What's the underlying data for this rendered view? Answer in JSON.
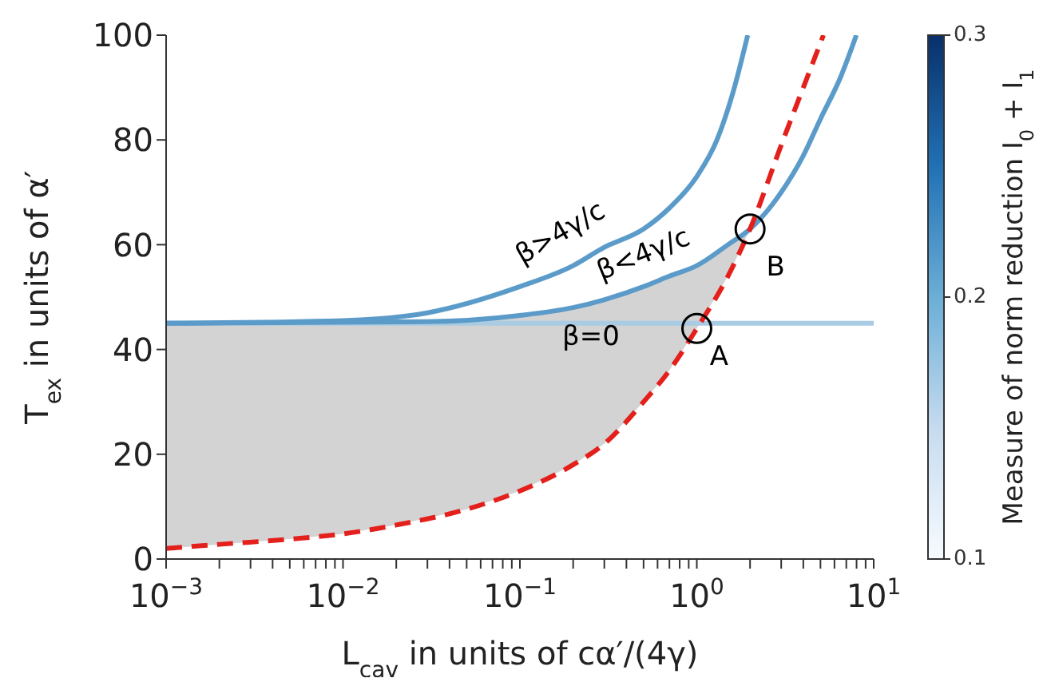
{
  "chart_data": {
    "type": "line",
    "xlabel": "L$_{cav}$ in units of cα′/(4γ)",
    "ylabel": "T$_{ex}$ in units of α′",
    "clabel": "Measure of norm reduction I$_{0}$ + I$_{1}$",
    "clim": [
      0.1,
      0.3
    ],
    "cticks": [
      0.1,
      0.2,
      0.3
    ],
    "log": "x",
    "grid": false,
    "legend": false,
    "xlim": [
      0.001,
      10
    ],
    "ylim": [
      0,
      100
    ],
    "yticks": [
      0,
      20,
      40,
      60,
      80,
      100
    ],
    "xticks": [
      {
        "value": 0.001,
        "label": "10$^{−3}$"
      },
      {
        "value": 0.002,
        "label": null
      },
      {
        "value": 0.003,
        "label": null
      },
      {
        "value": 0.004,
        "label": null
      },
      {
        "value": 0.005,
        "label": null
      },
      {
        "value": 0.006,
        "label": null
      },
      {
        "value": 0.007,
        "label": null
      },
      {
        "value": 0.008,
        "label": null
      },
      {
        "value": 0.009,
        "label": null
      },
      {
        "value": 0.01,
        "label": "10$^{−2}$"
      },
      {
        "value": 0.02,
        "label": null
      },
      {
        "value": 0.03,
        "label": null
      },
      {
        "value": 0.04,
        "label": null
      },
      {
        "value": 0.05,
        "label": null
      },
      {
        "value": 0.06,
        "label": null
      },
      {
        "value": 0.07,
        "label": null
      },
      {
        "value": 0.08,
        "label": null
      },
      {
        "value": 0.09,
        "label": null
      },
      {
        "value": 0.1,
        "label": "10$^{−1}$"
      },
      {
        "value": 0.2,
        "label": null
      },
      {
        "value": 0.3,
        "label": null
      },
      {
        "value": 0.4,
        "label": null
      },
      {
        "value": 0.5,
        "label": null
      },
      {
        "value": 0.6,
        "label": null
      },
      {
        "value": 0.7,
        "label": null
      },
      {
        "value": 0.8,
        "label": null
      },
      {
        "value": 0.9,
        "label": null
      },
      {
        "value": 1,
        "label": "10$^{0}$"
      },
      {
        "value": 2,
        "label": null
      },
      {
        "value": 3,
        "label": null
      },
      {
        "value": 4,
        "label": null
      },
      {
        "value": 5,
        "label": null
      },
      {
        "value": 6,
        "label": null
      },
      {
        "value": 7,
        "label": null
      },
      {
        "value": 8,
        "label": null
      },
      {
        "value": 9,
        "label": null
      },
      {
        "value": 10,
        "label": "10$^{1}$"
      }
    ],
    "series": [
      {
        "color": "#a9cbe3",
        "line_style": "solid",
        "x": [
          0.001,
          10
        ],
        "values": [
          45,
          45
        ]
      },
      {
        "line_style": "solid",
        "x": [
          0.001,
          0.01,
          0.03,
          0.1,
          0.2,
          0.3,
          0.5,
          0.7,
          1,
          1.3,
          1.6,
          1.94
        ],
        "values": [
          45,
          45.5,
          47,
          52,
          56,
          59.5,
          63,
          67,
          73,
          80,
          89,
          100
        ],
        "color": "#5b9bc9"
      },
      {
        "line_style": "solid",
        "x": [
          0.001,
          0.03,
          0.1,
          0.2,
          0.3,
          0.5,
          0.7,
          1,
          1.5,
          2,
          3,
          4,
          5,
          6.5,
          7.98
        ],
        "values": [
          45,
          45.3,
          46.5,
          48,
          49.5,
          52,
          54,
          56,
          60,
          63,
          70,
          77,
          84,
          92,
          100
        ],
        "color": "#5b9bc9"
      },
      {
        "color": "#e4201c",
        "line_style": "dashed",
        "x": [
          0.001,
          0.002,
          0.005,
          0.01,
          0.02,
          0.05,
          0.1,
          0.2,
          0.3,
          0.5,
          0.7,
          1,
          1.5,
          2,
          3,
          4,
          5.2
        ],
        "values": [
          2,
          2.8,
          3.8,
          4.8,
          6.5,
          9.5,
          13,
          18,
          22,
          30,
          36,
          44,
          54,
          63,
          79,
          90,
          100
        ],
        "lower": [
          2,
          2.8,
          3.8,
          4.8,
          6.5,
          9.5,
          13,
          18,
          22,
          30,
          36,
          44,
          54,
          63,
          null,
          null,
          null
        ],
        "upper": [
          45,
          45,
          45,
          45,
          45.2,
          45.8,
          46.5,
          48,
          49.5,
          52,
          54,
          56,
          60,
          63,
          null,
          null,
          null
        ]
      },
      {
        "type": "scatter",
        "color": "#000000",
        "marker": "circle",
        "x": [
          1,
          2
        ],
        "values": [
          44,
          63
        ]
      }
    ],
    "annotations": [
      "β>4γ/c",
      {
        "text": "β<4γ/c",
        "x": 0.5,
        "y": 52
      },
      "β=0",
      {
        "text": "A",
        "x": 1,
        "y": 44
      },
      {
        "text": "B",
        "x": 2,
        "y": 63
      }
    ]
  }
}
